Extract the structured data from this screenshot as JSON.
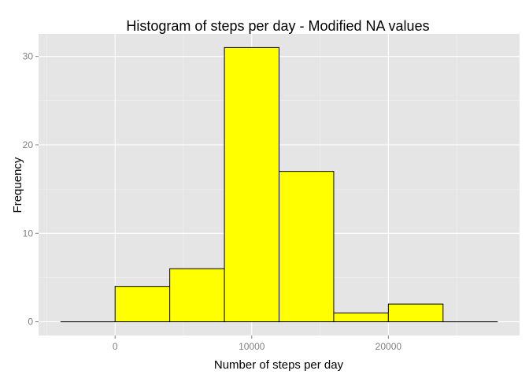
{
  "chart_data": {
    "type": "bar",
    "title": "Histogram of steps per day - Modified NA values",
    "xlabel": "Number of steps per day",
    "ylabel": "Frequency",
    "bin_width": 4000,
    "bins": [
      {
        "start": -4000,
        "end": 0,
        "count": 0
      },
      {
        "start": 0,
        "end": 4000,
        "count": 4
      },
      {
        "start": 4000,
        "end": 8000,
        "count": 6
      },
      {
        "start": 8000,
        "end": 12000,
        "count": 31
      },
      {
        "start": 12000,
        "end": 16000,
        "count": 17
      },
      {
        "start": 16000,
        "end": 20000,
        "count": 1
      },
      {
        "start": 20000,
        "end": 24000,
        "count": 2
      },
      {
        "start": 24000,
        "end": 28000,
        "count": 0
      }
    ],
    "xlim": [
      -5600,
      29600
    ],
    "ylim": [
      -1.55,
      32.55
    ],
    "x_ticks": [
      0,
      10000,
      20000
    ],
    "x_tick_labels": [
      "0",
      "10000",
      "20000"
    ],
    "y_ticks": [
      0,
      10,
      20,
      30
    ],
    "y_tick_labels": [
      "0",
      "10",
      "20",
      "30"
    ],
    "grid": true,
    "colors": {
      "bar_fill": "#ffff00",
      "bar_outline": "#000000",
      "panel_background": "#e5e5e5",
      "grid_major": "#ffffff",
      "grid_minor": "#f2f2f2",
      "tick_label": "#7f7f7f"
    }
  }
}
